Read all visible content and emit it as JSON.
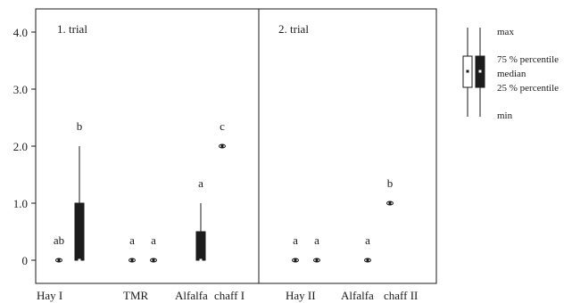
{
  "chart_data": {
    "type": "box",
    "y_axis": {
      "ticks": [
        "0",
        "1.0",
        "2.0",
        "3.0",
        "4.0"
      ],
      "tick_values": [
        0,
        1,
        2,
        3,
        4
      ],
      "ylim": [
        -0.4,
        4.35
      ]
    },
    "panels": [
      {
        "title": "1. trial",
        "x_labels": [
          "Hay I",
          "TMR",
          "Alfalfa",
          "chaff I"
        ],
        "boxes": [
          {
            "group": "Hay I",
            "style": "open",
            "min": 0,
            "q1": 0,
            "median": 0,
            "q3": 0,
            "max": 0,
            "letter": "ab"
          },
          {
            "group": "Hay I",
            "style": "filled",
            "min": 0,
            "q1": 0,
            "median": 0,
            "q3": 1,
            "max": 2,
            "letter": "b"
          },
          {
            "group": "TMR",
            "style": "open",
            "min": 0,
            "q1": 0,
            "median": 0,
            "q3": 0,
            "max": 0,
            "letter": "a"
          },
          {
            "group": "TMR",
            "style": "open",
            "min": 0,
            "q1": 0,
            "median": 0,
            "q3": 0,
            "max": 0,
            "letter": "a"
          },
          {
            "group": "Alfalfa chaff I",
            "style": "filled",
            "min": 0,
            "q1": 0,
            "median": 0,
            "q3": 0.5,
            "max": 1,
            "letter": "a"
          },
          {
            "group": "Alfalfa chaff I",
            "style": "open",
            "min": 2,
            "q1": 2,
            "median": 2,
            "q3": 2,
            "max": 2,
            "letter": "c"
          }
        ]
      },
      {
        "title": "2. trial",
        "x_labels": [
          "Hay II",
          "Alfalfa",
          "chaff II"
        ],
        "boxes": [
          {
            "group": "Hay II",
            "style": "open",
            "min": 0,
            "q1": 0,
            "median": 0,
            "q3": 0,
            "max": 0,
            "letter": "a"
          },
          {
            "group": "Hay II",
            "style": "open",
            "min": 0,
            "q1": 0,
            "median": 0,
            "q3": 0,
            "max": 0,
            "letter": "a"
          },
          {
            "group": "Alfalfa chaff II",
            "style": "open",
            "min": 0,
            "q1": 0,
            "median": 0,
            "q3": 0,
            "max": 0,
            "letter": "a"
          },
          {
            "group": "Alfalfa chaff II",
            "style": "open",
            "min": 1,
            "q1": 1,
            "median": 1,
            "q3": 1,
            "max": 1,
            "letter": "b"
          }
        ]
      }
    ],
    "legend": {
      "placement": "right",
      "labels": [
        "max",
        "75 % percentile",
        "median",
        "25 % percentile",
        "min"
      ]
    },
    "grid": false
  },
  "colors": {
    "filled_box": "#1c1c1c",
    "open_box": "#ffffff",
    "line": "#1a1a1a"
  }
}
